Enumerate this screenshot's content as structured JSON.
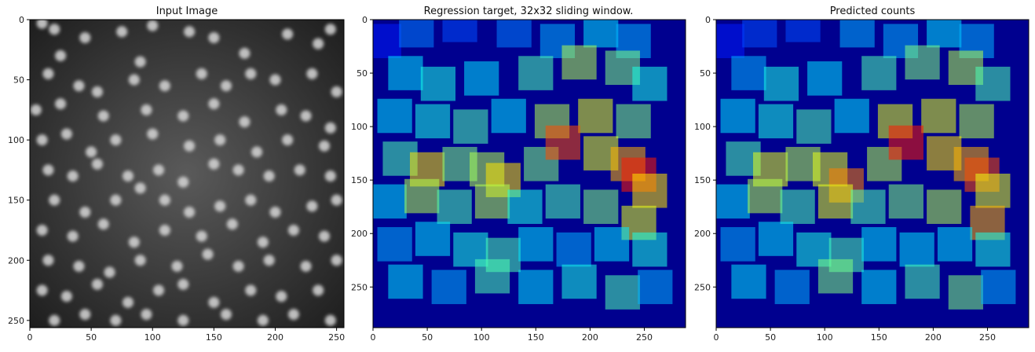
{
  "chart_data": [
    {
      "type": "heatmap",
      "title": "Input Image",
      "xlim": [
        0,
        256
      ],
      "ylim": [
        256,
        0
      ],
      "xticks": [
        0,
        50,
        100,
        150,
        200,
        250
      ],
      "yticks": [
        0,
        50,
        100,
        150,
        200,
        250
      ],
      "colormap": "gray",
      "background": "#2a2a2a",
      "cells": [
        [
          10,
          3
        ],
        [
          20,
          8
        ],
        [
          25,
          30
        ],
        [
          45,
          15
        ],
        [
          75,
          10
        ],
        [
          90,
          35
        ],
        [
          100,
          5
        ],
        [
          130,
          10
        ],
        [
          150,
          15
        ],
        [
          175,
          28
        ],
        [
          210,
          12
        ],
        [
          235,
          20
        ],
        [
          245,
          8
        ],
        [
          15,
          45
        ],
        [
          40,
          55
        ],
        [
          55,
          60
        ],
        [
          85,
          50
        ],
        [
          110,
          55
        ],
        [
          140,
          45
        ],
        [
          160,
          55
        ],
        [
          180,
          45
        ],
        [
          200,
          50
        ],
        [
          230,
          45
        ],
        [
          250,
          60
        ],
        [
          5,
          75
        ],
        [
          25,
          70
        ],
        [
          60,
          80
        ],
        [
          95,
          75
        ],
        [
          125,
          80
        ],
        [
          150,
          70
        ],
        [
          175,
          85
        ],
        [
          205,
          75
        ],
        [
          225,
          80
        ],
        [
          245,
          90
        ],
        [
          10,
          100
        ],
        [
          30,
          95
        ],
        [
          50,
          110
        ],
        [
          70,
          100
        ],
        [
          100,
          95
        ],
        [
          130,
          105
        ],
        [
          155,
          100
        ],
        [
          185,
          110
        ],
        [
          210,
          100
        ],
        [
          240,
          105
        ],
        [
          15,
          125
        ],
        [
          35,
          130
        ],
        [
          55,
          120
        ],
        [
          80,
          130
        ],
        [
          105,
          125
        ],
        [
          125,
          135
        ],
        [
          150,
          120
        ],
        [
          170,
          125
        ],
        [
          195,
          130
        ],
        [
          220,
          125
        ],
        [
          245,
          130
        ],
        [
          20,
          150
        ],
        [
          45,
          160
        ],
        [
          70,
          150
        ],
        [
          90,
          140
        ],
        [
          110,
          150
        ],
        [
          130,
          160
        ],
        [
          155,
          155
        ],
        [
          180,
          150
        ],
        [
          200,
          160
        ],
        [
          230,
          155
        ],
        [
          250,
          150
        ],
        [
          10,
          175
        ],
        [
          35,
          180
        ],
        [
          60,
          170
        ],
        [
          85,
          185
        ],
        [
          110,
          175
        ],
        [
          140,
          180
        ],
        [
          165,
          170
        ],
        [
          190,
          185
        ],
        [
          215,
          175
        ],
        [
          240,
          180
        ],
        [
          15,
          200
        ],
        [
          40,
          205
        ],
        [
          65,
          210
        ],
        [
          90,
          200
        ],
        [
          120,
          205
        ],
        [
          145,
          195
        ],
        [
          170,
          205
        ],
        [
          195,
          200
        ],
        [
          225,
          205
        ],
        [
          250,
          200
        ],
        [
          10,
          225
        ],
        [
          30,
          230
        ],
        [
          55,
          220
        ],
        [
          80,
          235
        ],
        [
          105,
          225
        ],
        [
          125,
          220
        ],
        [
          150,
          235
        ],
        [
          180,
          225
        ],
        [
          205,
          230
        ],
        [
          235,
          225
        ],
        [
          20,
          250
        ],
        [
          45,
          245
        ],
        [
          70,
          250
        ],
        [
          95,
          245
        ],
        [
          125,
          250
        ],
        [
          160,
          245
        ],
        [
          190,
          250
        ],
        [
          215,
          245
        ],
        [
          245,
          250
        ]
      ]
    },
    {
      "type": "heatmap",
      "title": "Regression target, 32x32 sliding window.",
      "xlim": [
        0,
        288
      ],
      "ylim": [
        288,
        0
      ],
      "xticks": [
        0,
        50,
        100,
        150,
        200,
        250
      ],
      "yticks": [
        0,
        50,
        100,
        150,
        200,
        250
      ],
      "colormap": "jet",
      "background": "#00008f",
      "cells": [
        [
          10,
          20,
          32,
          0.15
        ],
        [
          40,
          10,
          32,
          0.25
        ],
        [
          80,
          5,
          32,
          0.2
        ],
        [
          130,
          10,
          32,
          0.25
        ],
        [
          170,
          20,
          32,
          0.3
        ],
        [
          210,
          10,
          32,
          0.35
        ],
        [
          240,
          20,
          32,
          0.3
        ],
        [
          30,
          50,
          32,
          0.35
        ],
        [
          60,
          60,
          32,
          0.4
        ],
        [
          100,
          55,
          32,
          0.35
        ],
        [
          150,
          50,
          32,
          0.45
        ],
        [
          190,
          40,
          32,
          0.55
        ],
        [
          230,
          45,
          32,
          0.5
        ],
        [
          255,
          60,
          32,
          0.4
        ],
        [
          20,
          90,
          32,
          0.35
        ],
        [
          55,
          95,
          32,
          0.4
        ],
        [
          90,
          100,
          32,
          0.45
        ],
        [
          125,
          90,
          32,
          0.35
        ],
        [
          165,
          95,
          32,
          0.55
        ],
        [
          205,
          90,
          32,
          0.6
        ],
        [
          240,
          95,
          32,
          0.5
        ],
        [
          25,
          130,
          32,
          0.45
        ],
        [
          50,
          140,
          32,
          0.65
        ],
        [
          80,
          135,
          32,
          0.5
        ],
        [
          105,
          140,
          32,
          0.55
        ],
        [
          120,
          150,
          32,
          0.65
        ],
        [
          155,
          135,
          32,
          0.5
        ],
        [
          175,
          115,
          32,
          0.8
        ],
        [
          210,
          125,
          32,
          0.6
        ],
        [
          235,
          135,
          32,
          0.7
        ],
        [
          245,
          145,
          32,
          0.85
        ],
        [
          255,
          160,
          32,
          0.65
        ],
        [
          15,
          170,
          32,
          0.35
        ],
        [
          45,
          165,
          32,
          0.55
        ],
        [
          75,
          175,
          32,
          0.45
        ],
        [
          110,
          170,
          32,
          0.55
        ],
        [
          140,
          175,
          32,
          0.4
        ],
        [
          175,
          170,
          32,
          0.45
        ],
        [
          210,
          175,
          32,
          0.5
        ],
        [
          245,
          190,
          32,
          0.6
        ],
        [
          20,
          210,
          32,
          0.3
        ],
        [
          55,
          205,
          32,
          0.35
        ],
        [
          90,
          215,
          32,
          0.4
        ],
        [
          120,
          220,
          32,
          0.45
        ],
        [
          150,
          210,
          32,
          0.35
        ],
        [
          185,
          215,
          32,
          0.3
        ],
        [
          220,
          210,
          32,
          0.35
        ],
        [
          255,
          215,
          32,
          0.4
        ],
        [
          30,
          245,
          32,
          0.35
        ],
        [
          70,
          250,
          32,
          0.3
        ],
        [
          110,
          240,
          32,
          0.45
        ],
        [
          150,
          250,
          32,
          0.35
        ],
        [
          190,
          245,
          32,
          0.4
        ],
        [
          230,
          255,
          32,
          0.45
        ],
        [
          260,
          250,
          32,
          0.3
        ]
      ]
    },
    {
      "type": "heatmap",
      "title": "Predicted counts",
      "xlim": [
        0,
        288
      ],
      "ylim": [
        288,
        0
      ],
      "xticks": [
        0,
        50,
        100,
        150,
        200,
        250
      ],
      "yticks": [
        0,
        50,
        100,
        150,
        200,
        250
      ],
      "colormap": "jet",
      "background": "#00008f",
      "cells": [
        [
          10,
          20,
          32,
          0.15
        ],
        [
          40,
          10,
          32,
          0.2
        ],
        [
          80,
          5,
          32,
          0.2
        ],
        [
          130,
          10,
          32,
          0.3
        ],
        [
          170,
          20,
          32,
          0.3
        ],
        [
          210,
          10,
          32,
          0.35
        ],
        [
          240,
          20,
          32,
          0.3
        ],
        [
          30,
          50,
          32,
          0.3
        ],
        [
          60,
          60,
          32,
          0.4
        ],
        [
          100,
          55,
          32,
          0.35
        ],
        [
          150,
          50,
          32,
          0.45
        ],
        [
          190,
          40,
          32,
          0.5
        ],
        [
          230,
          45,
          32,
          0.55
        ],
        [
          255,
          60,
          32,
          0.45
        ],
        [
          20,
          90,
          32,
          0.35
        ],
        [
          55,
          95,
          32,
          0.4
        ],
        [
          90,
          100,
          32,
          0.45
        ],
        [
          125,
          90,
          32,
          0.35
        ],
        [
          165,
          95,
          32,
          0.6
        ],
        [
          205,
          90,
          32,
          0.6
        ],
        [
          240,
          95,
          32,
          0.55
        ],
        [
          25,
          130,
          32,
          0.45
        ],
        [
          50,
          140,
          32,
          0.6
        ],
        [
          80,
          135,
          32,
          0.55
        ],
        [
          105,
          140,
          32,
          0.6
        ],
        [
          120,
          155,
          32,
          0.75
        ],
        [
          155,
          135,
          32,
          0.55
        ],
        [
          175,
          115,
          32,
          0.85
        ],
        [
          210,
          125,
          32,
          0.65
        ],
        [
          235,
          135,
          32,
          0.7
        ],
        [
          245,
          145,
          32,
          0.8
        ],
        [
          255,
          160,
          32,
          0.6
        ],
        [
          15,
          170,
          32,
          0.35
        ],
        [
          45,
          165,
          32,
          0.55
        ],
        [
          75,
          175,
          32,
          0.45
        ],
        [
          110,
          170,
          32,
          0.6
        ],
        [
          140,
          175,
          32,
          0.45
        ],
        [
          175,
          170,
          32,
          0.5
        ],
        [
          210,
          175,
          32,
          0.55
        ],
        [
          250,
          190,
          32,
          0.7
        ],
        [
          20,
          210,
          32,
          0.3
        ],
        [
          55,
          205,
          32,
          0.35
        ],
        [
          90,
          215,
          32,
          0.4
        ],
        [
          120,
          220,
          32,
          0.45
        ],
        [
          150,
          210,
          32,
          0.35
        ],
        [
          185,
          215,
          32,
          0.35
        ],
        [
          220,
          210,
          32,
          0.35
        ],
        [
          255,
          215,
          32,
          0.4
        ],
        [
          30,
          245,
          32,
          0.35
        ],
        [
          70,
          250,
          32,
          0.3
        ],
        [
          110,
          240,
          32,
          0.5
        ],
        [
          150,
          250,
          32,
          0.35
        ],
        [
          190,
          245,
          32,
          0.45
        ],
        [
          230,
          255,
          32,
          0.5
        ],
        [
          260,
          250,
          32,
          0.3
        ]
      ]
    }
  ]
}
